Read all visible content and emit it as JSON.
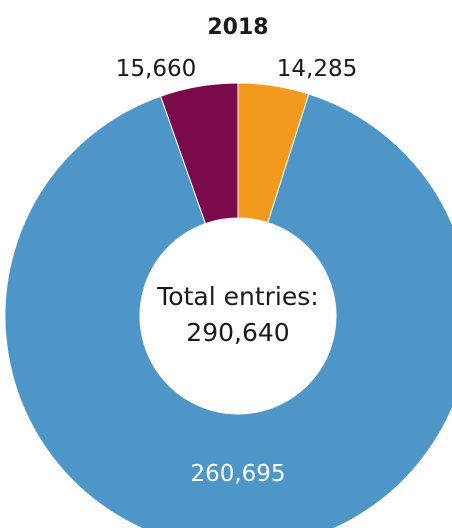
{
  "chart_data": {
    "type": "pie",
    "style": "donut",
    "title": "2018",
    "categories": [
      "",
      "",
      ""
    ],
    "values": [
      14285,
      260695,
      15660
    ],
    "value_labels": [
      "14,285",
      "260,695",
      "15,660"
    ],
    "colors": [
      "#f39a1e",
      "#4f96c8",
      "#7b0a4c"
    ],
    "center_label": "Total entries:",
    "center_value": "290,640",
    "legend": "none"
  }
}
